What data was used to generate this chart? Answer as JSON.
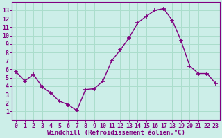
{
  "x": [
    0,
    1,
    2,
    3,
    4,
    5,
    6,
    7,
    8,
    9,
    10,
    11,
    12,
    13,
    14,
    15,
    16,
    17,
    18,
    19,
    20,
    21,
    22,
    23
  ],
  "y": [
    5.7,
    4.6,
    5.4,
    3.9,
    3.2,
    2.2,
    1.8,
    1.1,
    3.6,
    3.7,
    4.6,
    7.0,
    8.3,
    9.7,
    11.5,
    12.3,
    13.0,
    13.2,
    11.8,
    9.4,
    6.4,
    5.5,
    5.5,
    4.3
  ],
  "line_color": "#800080",
  "marker": "+",
  "markersize": 4,
  "linewidth": 1.0,
  "bg_color": "#cceee8",
  "grid_color": "#aaddcc",
  "xlabel": "Windchill (Refroidissement éolien,°C)",
  "xlim": [
    -0.5,
    23.5
  ],
  "ylim": [
    0,
    14
  ],
  "yticks": [
    1,
    2,
    3,
    4,
    5,
    6,
    7,
    8,
    9,
    10,
    11,
    12,
    13
  ],
  "xticks": [
    0,
    1,
    2,
    3,
    4,
    5,
    6,
    7,
    8,
    9,
    10,
    11,
    12,
    13,
    14,
    15,
    16,
    17,
    18,
    19,
    20,
    21,
    22,
    23
  ],
  "tick_color": "#800080",
  "label_color": "#800080",
  "axis_color": "#800080",
  "xlabel_fontsize": 6.5,
  "tick_fontsize": 6.0
}
